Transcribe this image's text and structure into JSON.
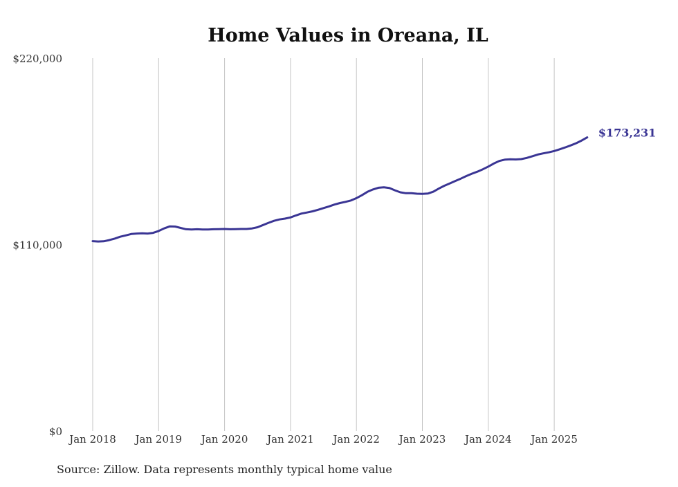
{
  "chart_data": {
    "type": "line",
    "title": "Home Values in Oreana, IL",
    "xlabel": "",
    "ylabel": "",
    "x_ticks": [
      "Jan 2018",
      "Jan 2019",
      "Jan 2020",
      "Jan 2021",
      "Jan 2022",
      "Jan 2023",
      "Jan 2024",
      "Jan 2025"
    ],
    "y_ticks": [
      "$0",
      "$110,000",
      "$220,000"
    ],
    "ylim": [
      0,
      220000
    ],
    "grid": "vertical",
    "line_color": "#3a3594",
    "end_label": "$173,231",
    "source": "Source: Zillow. Data represents monthly typical home value",
    "series": [
      {
        "values": [
          [
            "2018-01",
            112000
          ],
          [
            "2018-02",
            111800
          ],
          [
            "2018-03",
            111900
          ],
          [
            "2018-04",
            112600
          ],
          [
            "2018-05",
            113500
          ],
          [
            "2018-06",
            114600
          ],
          [
            "2018-07",
            115400
          ],
          [
            "2018-08",
            116200
          ],
          [
            "2018-09",
            116500
          ],
          [
            "2018-10",
            116600
          ],
          [
            "2018-11",
            116500
          ],
          [
            "2018-12",
            116900
          ],
          [
            "2019-01",
            118000
          ],
          [
            "2019-02",
            119500
          ],
          [
            "2019-03",
            120700
          ],
          [
            "2019-04",
            120600
          ],
          [
            "2019-05",
            119800
          ],
          [
            "2019-06",
            119000
          ],
          [
            "2019-07",
            118900
          ],
          [
            "2019-08",
            119000
          ],
          [
            "2019-09",
            118900
          ],
          [
            "2019-10",
            118900
          ],
          [
            "2019-11",
            119000
          ],
          [
            "2019-12",
            119100
          ],
          [
            "2020-01",
            119200
          ],
          [
            "2020-02",
            119000
          ],
          [
            "2020-03",
            119100
          ],
          [
            "2020-04",
            119200
          ],
          [
            "2020-05",
            119200
          ],
          [
            "2020-06",
            119500
          ],
          [
            "2020-07",
            120200
          ],
          [
            "2020-08",
            121500
          ],
          [
            "2020-09",
            122800
          ],
          [
            "2020-10",
            124000
          ],
          [
            "2020-11",
            124800
          ],
          [
            "2020-12",
            125300
          ],
          [
            "2021-01",
            126000
          ],
          [
            "2021-02",
            127200
          ],
          [
            "2021-03",
            128300
          ],
          [
            "2021-04",
            128900
          ],
          [
            "2021-05",
            129600
          ],
          [
            "2021-06",
            130500
          ],
          [
            "2021-07",
            131500
          ],
          [
            "2021-08",
            132500
          ],
          [
            "2021-09",
            133600
          ],
          [
            "2021-10",
            134500
          ],
          [
            "2021-11",
            135200
          ],
          [
            "2021-12",
            136000
          ],
          [
            "2022-01",
            137400
          ],
          [
            "2022-02",
            139100
          ],
          [
            "2022-03",
            141100
          ],
          [
            "2022-04",
            142500
          ],
          [
            "2022-05",
            143500
          ],
          [
            "2022-06",
            143800
          ],
          [
            "2022-07",
            143400
          ],
          [
            "2022-08",
            142000
          ],
          [
            "2022-09",
            140800
          ],
          [
            "2022-10",
            140300
          ],
          [
            "2022-11",
            140300
          ],
          [
            "2022-12",
            140000
          ],
          [
            "2023-01",
            139900
          ],
          [
            "2023-02",
            140100
          ],
          [
            "2023-03",
            141200
          ],
          [
            "2023-04",
            143000
          ],
          [
            "2023-05",
            144700
          ],
          [
            "2023-06",
            146100
          ],
          [
            "2023-07",
            147500
          ],
          [
            "2023-08",
            148900
          ],
          [
            "2023-09",
            150400
          ],
          [
            "2023-10",
            151800
          ],
          [
            "2023-11",
            153000
          ],
          [
            "2023-12",
            154400
          ],
          [
            "2024-01",
            156000
          ],
          [
            "2024-02",
            157800
          ],
          [
            "2024-03",
            159300
          ],
          [
            "2024-04",
            160100
          ],
          [
            "2024-05",
            160300
          ],
          [
            "2024-06",
            160200
          ],
          [
            "2024-07",
            160400
          ],
          [
            "2024-08",
            161100
          ],
          [
            "2024-09",
            162100
          ],
          [
            "2024-10",
            163100
          ],
          [
            "2024-11",
            163800
          ],
          [
            "2024-12",
            164400
          ],
          [
            "2025-01",
            165200
          ],
          [
            "2025-02",
            166200
          ],
          [
            "2025-03",
            167300
          ],
          [
            "2025-04",
            168500
          ],
          [
            "2025-05",
            169800
          ],
          [
            "2025-06",
            171400
          ],
          [
            "2025-07",
            173231
          ]
        ]
      }
    ]
  }
}
